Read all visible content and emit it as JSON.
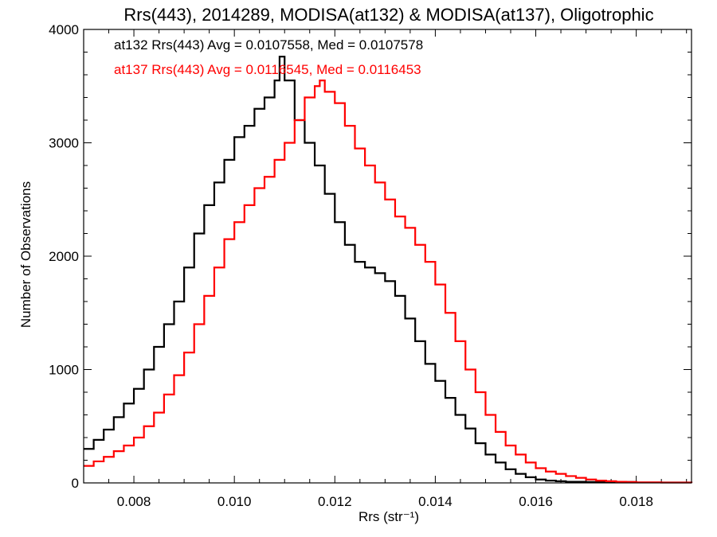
{
  "chart_data": {
    "type": "line",
    "title": "Rrs(443), 2014289, MODISA(at132) & MODISA(at137), Oligotrophic",
    "xlabel": "Rrs (str⁻¹)",
    "ylabel": "Number of Observations",
    "xlim": [
      0.007,
      0.0191
    ],
    "ylim": [
      0,
      4000
    ],
    "xticks": [
      "0.008",
      "0.010",
      "0.012",
      "0.014",
      "0.016",
      "0.018"
    ],
    "yticks": [
      "0",
      "1000",
      "2000",
      "3000",
      "4000"
    ],
    "grid": false,
    "stat_annotations": [
      {
        "text": "at132 Rrs(443) Avg = 0.0107558, Med = 0.0107578",
        "color": "#000000"
      },
      {
        "text": "at137 Rrs(443) Avg = 0.0116545, Med = 0.0116453",
        "color": "#ff0000"
      }
    ],
    "series": [
      {
        "color": "#000000",
        "x": [
          0.007,
          0.0072,
          0.0074,
          0.0076,
          0.0078,
          0.008,
          0.0082,
          0.0084,
          0.0086,
          0.0088,
          0.009,
          0.0092,
          0.0094,
          0.0096,
          0.0098,
          0.01,
          0.0102,
          0.0104,
          0.0106,
          0.0108,
          0.0109,
          0.011,
          0.0112,
          0.0114,
          0.0116,
          0.0118,
          0.012,
          0.0122,
          0.0124,
          0.0126,
          0.0128,
          0.013,
          0.0132,
          0.0134,
          0.0136,
          0.0138,
          0.014,
          0.0142,
          0.0144,
          0.0146,
          0.0148,
          0.015,
          0.0152,
          0.0154,
          0.0156,
          0.0158,
          0.016,
          0.0162,
          0.0164,
          0.0166,
          0.017,
          0.018,
          0.0191
        ],
        "values": [
          300,
          380,
          470,
          580,
          700,
          830,
          1000,
          1200,
          1400,
          1600,
          1900,
          2200,
          2450,
          2650,
          2850,
          3050,
          3150,
          3300,
          3400,
          3550,
          3760,
          3550,
          3200,
          3000,
          2800,
          2550,
          2300,
          2100,
          1950,
          1900,
          1850,
          1780,
          1650,
          1450,
          1250,
          1050,
          900,
          750,
          600,
          480,
          350,
          250,
          180,
          120,
          80,
          50,
          30,
          20,
          15,
          10,
          8,
          4,
          0
        ]
      },
      {
        "color": "#ff0000",
        "x": [
          0.007,
          0.0072,
          0.0074,
          0.0076,
          0.0078,
          0.008,
          0.0082,
          0.0084,
          0.0086,
          0.0088,
          0.009,
          0.0092,
          0.0094,
          0.0096,
          0.0098,
          0.01,
          0.0102,
          0.0104,
          0.0106,
          0.0108,
          0.011,
          0.0112,
          0.0114,
          0.0116,
          0.0117,
          0.0118,
          0.012,
          0.0122,
          0.0124,
          0.0126,
          0.0128,
          0.013,
          0.0132,
          0.0134,
          0.0136,
          0.0138,
          0.014,
          0.0142,
          0.0144,
          0.0146,
          0.0148,
          0.015,
          0.0152,
          0.0154,
          0.0156,
          0.0158,
          0.016,
          0.0162,
          0.0164,
          0.0166,
          0.0168,
          0.017,
          0.0172,
          0.0174,
          0.0176,
          0.0178,
          0.018,
          0.0185,
          0.0191
        ],
        "values": [
          150,
          190,
          230,
          280,
          330,
          400,
          500,
          620,
          780,
          950,
          1150,
          1400,
          1650,
          1900,
          2150,
          2300,
          2450,
          2600,
          2700,
          2850,
          3000,
          3200,
          3400,
          3500,
          3550,
          3450,
          3350,
          3150,
          2950,
          2800,
          2650,
          2500,
          2350,
          2250,
          2100,
          1950,
          1750,
          1500,
          1250,
          1000,
          800,
          600,
          450,
          330,
          250,
          180,
          130,
          100,
          80,
          60,
          45,
          30,
          20,
          15,
          10,
          8,
          5,
          3,
          0
        ]
      }
    ]
  }
}
